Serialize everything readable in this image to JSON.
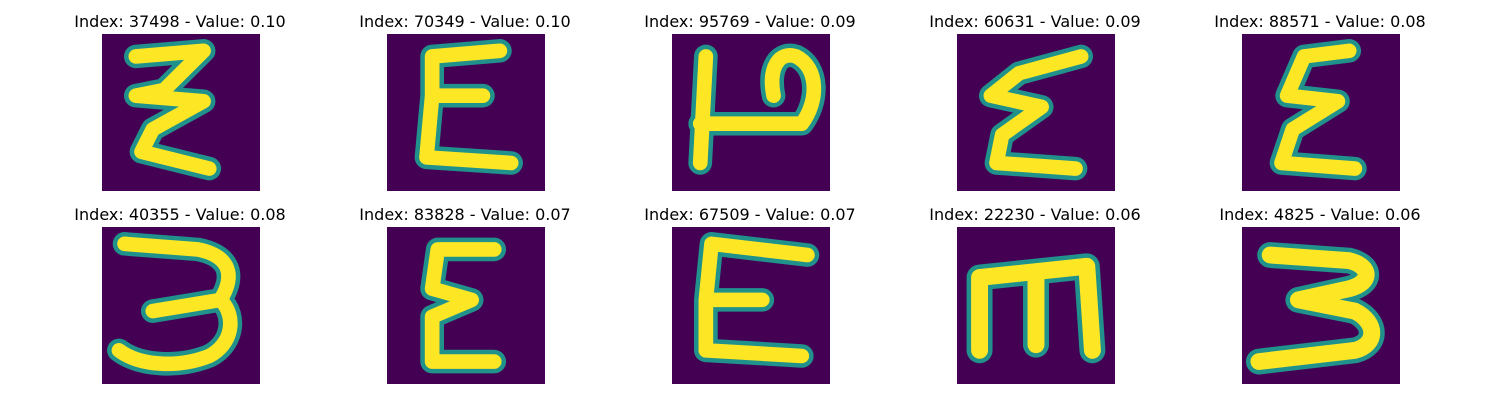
{
  "colors": {
    "background": "#440154",
    "stroke_mid": "#21918c",
    "stroke_high": "#fde725"
  },
  "panels": [
    {
      "title": "Index: 37498 - Value: 0.10",
      "glyph": "zigzag-e"
    },
    {
      "title": "Index: 70349 - Value: 0.10",
      "glyph": "epsilon"
    },
    {
      "title": "Index: 95769 - Value: 0.09",
      "glyph": "rotated-p"
    },
    {
      "title": "Index: 60631 - Value: 0.09",
      "glyph": "epsilon"
    },
    {
      "title": "Index: 88571 - Value: 0.08",
      "glyph": "epsilon"
    },
    {
      "title": "Index: 40355 - Value: 0.08",
      "glyph": "three"
    },
    {
      "title": "Index: 83828 - Value: 0.07",
      "glyph": "epsilon"
    },
    {
      "title": "Index: 67509 - Value: 0.07",
      "glyph": "e-capital"
    },
    {
      "title": "Index: 22230 - Value: 0.06",
      "glyph": "m"
    },
    {
      "title": "Index: 4825 - Value: 0.06",
      "glyph": "three"
    }
  ]
}
